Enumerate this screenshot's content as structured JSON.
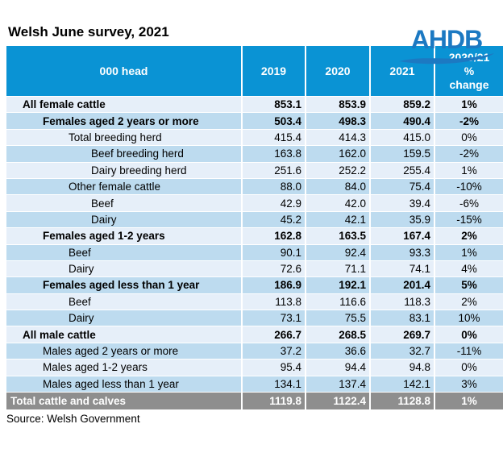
{
  "title": "Welsh June survey, 2021",
  "logo": {
    "text": "AHDB"
  },
  "source": "Source: Welsh Government",
  "colors": {
    "header_blue": "#0A93D4",
    "row_light": "#E6EFF9",
    "row_dark": "#BDDBEF",
    "total_gray": "#8E8E8E",
    "logo_blue": "#1C79C2"
  },
  "chart_data": {
    "type": "table",
    "title": "Welsh June survey, 2021",
    "units": "000 head",
    "columns": [
      "000 head",
      "2019",
      "2020",
      "2021",
      "2020/21 % change"
    ],
    "header": {
      "head_col": "000 head",
      "y1": "2019",
      "y2": "2020",
      "y3": "2021",
      "change_label": "2020/21\n%\nchange"
    },
    "rows": [
      {
        "label": "All female cattle",
        "y2019": "853.1",
        "y2020": "853.9",
        "y2021": "859.2",
        "change": "1%",
        "bold": true,
        "indent": 1
      },
      {
        "label": "Females aged 2 years or more",
        "y2019": "503.4",
        "y2020": "498.3",
        "y2021": "490.4",
        "change": "-2%",
        "bold": true,
        "indent": 2
      },
      {
        "label": "Total breeding herd",
        "y2019": "415.4",
        "y2020": "414.3",
        "y2021": "415.0",
        "change": "0%",
        "bold": false,
        "indent": 3
      },
      {
        "label": "Beef breeding herd",
        "y2019": "163.8",
        "y2020": "162.0",
        "y2021": "159.5",
        "change": "-2%",
        "bold": false,
        "indent": 4
      },
      {
        "label": "Dairy breeding herd",
        "y2019": "251.6",
        "y2020": "252.2",
        "y2021": "255.4",
        "change": "1%",
        "bold": false,
        "indent": 4
      },
      {
        "label": "Other female cattle",
        "y2019": "88.0",
        "y2020": "84.0",
        "y2021": "75.4",
        "change": "-10%",
        "bold": false,
        "indent": 3
      },
      {
        "label": "Beef",
        "y2019": "42.9",
        "y2020": "42.0",
        "y2021": "39.4",
        "change": "-6%",
        "bold": false,
        "indent": 4
      },
      {
        "label": "Dairy",
        "y2019": "45.2",
        "y2020": "42.1",
        "y2021": "35.9",
        "change": "-15%",
        "bold": false,
        "indent": 4
      },
      {
        "label": "Females aged 1-2 years",
        "y2019": "162.8",
        "y2020": "163.5",
        "y2021": "167.4",
        "change": "2%",
        "bold": true,
        "indent": 2
      },
      {
        "label": "Beef",
        "y2019": "90.1",
        "y2020": "92.4",
        "y2021": "93.3",
        "change": "1%",
        "bold": false,
        "indent": 3
      },
      {
        "label": "Dairy",
        "y2019": "72.6",
        "y2020": "71.1",
        "y2021": "74.1",
        "change": "4%",
        "bold": false,
        "indent": 3
      },
      {
        "label": "Females aged less than 1 year",
        "y2019": "186.9",
        "y2020": "192.1",
        "y2021": "201.4",
        "change": "5%",
        "bold": true,
        "indent": 2
      },
      {
        "label": "Beef",
        "y2019": "113.8",
        "y2020": "116.6",
        "y2021": "118.3",
        "change": "2%",
        "bold": false,
        "indent": 3
      },
      {
        "label": "Dairy",
        "y2019": "73.1",
        "y2020": "75.5",
        "y2021": "83.1",
        "change": "10%",
        "bold": false,
        "indent": 3
      },
      {
        "label": "All male cattle",
        "y2019": "266.7",
        "y2020": "268.5",
        "y2021": "269.7",
        "change": "0%",
        "bold": true,
        "indent": 1
      },
      {
        "label": "Males aged 2 years or more",
        "y2019": "37.2",
        "y2020": "36.6",
        "y2021": "32.7",
        "change": "-11%",
        "bold": false,
        "indent": 2
      },
      {
        "label": "Males aged 1-2 years",
        "y2019": "95.4",
        "y2020": "94.4",
        "y2021": "94.8",
        "change": "0%",
        "bold": false,
        "indent": 2
      },
      {
        "label": "Males aged less than 1 year",
        "y2019": "134.1",
        "y2020": "137.4",
        "y2021": "142.1",
        "change": "3%",
        "bold": false,
        "indent": 2
      }
    ],
    "total_row": {
      "label": "Total cattle and calves",
      "y2019": "1119.8",
      "y2020": "1122.4",
      "y2021": "1128.8",
      "change": "1%"
    }
  }
}
